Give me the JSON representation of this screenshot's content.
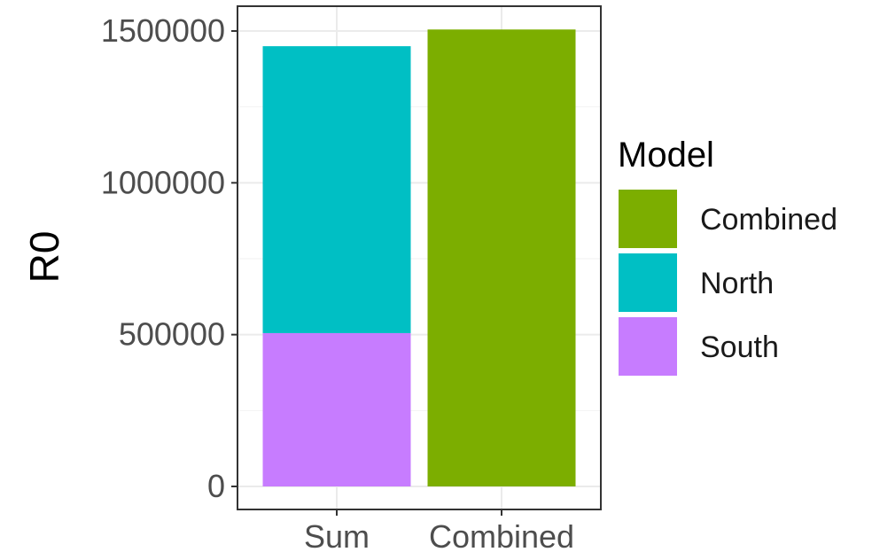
{
  "chart_data": {
    "type": "bar",
    "stacked": true,
    "categories": [
      "Sum",
      "Combined"
    ],
    "ylabel": "R0",
    "xlabel": "",
    "ylim": [
      0,
      1550000
    ],
    "yticks": [
      0,
      500000,
      1000000,
      1500000
    ],
    "ytick_labels": [
      "0",
      "500000",
      "1000000",
      "1500000"
    ],
    "series": [
      {
        "name": "South",
        "color": "#C77CFF",
        "values": [
          505000,
          0
        ]
      },
      {
        "name": "North",
        "color": "#00BFC4",
        "values": [
          945000,
          0
        ]
      },
      {
        "name": "Combined",
        "color": "#7CAE00",
        "values": [
          0,
          1505000
        ]
      }
    ],
    "legend": {
      "title": "Model",
      "position": "right",
      "entries": [
        {
          "label": "Combined",
          "color": "#7CAE00"
        },
        {
          "label": "North",
          "color": "#00BFC4"
        },
        {
          "label": "South",
          "color": "#C77CFF"
        }
      ]
    },
    "grid": true
  }
}
